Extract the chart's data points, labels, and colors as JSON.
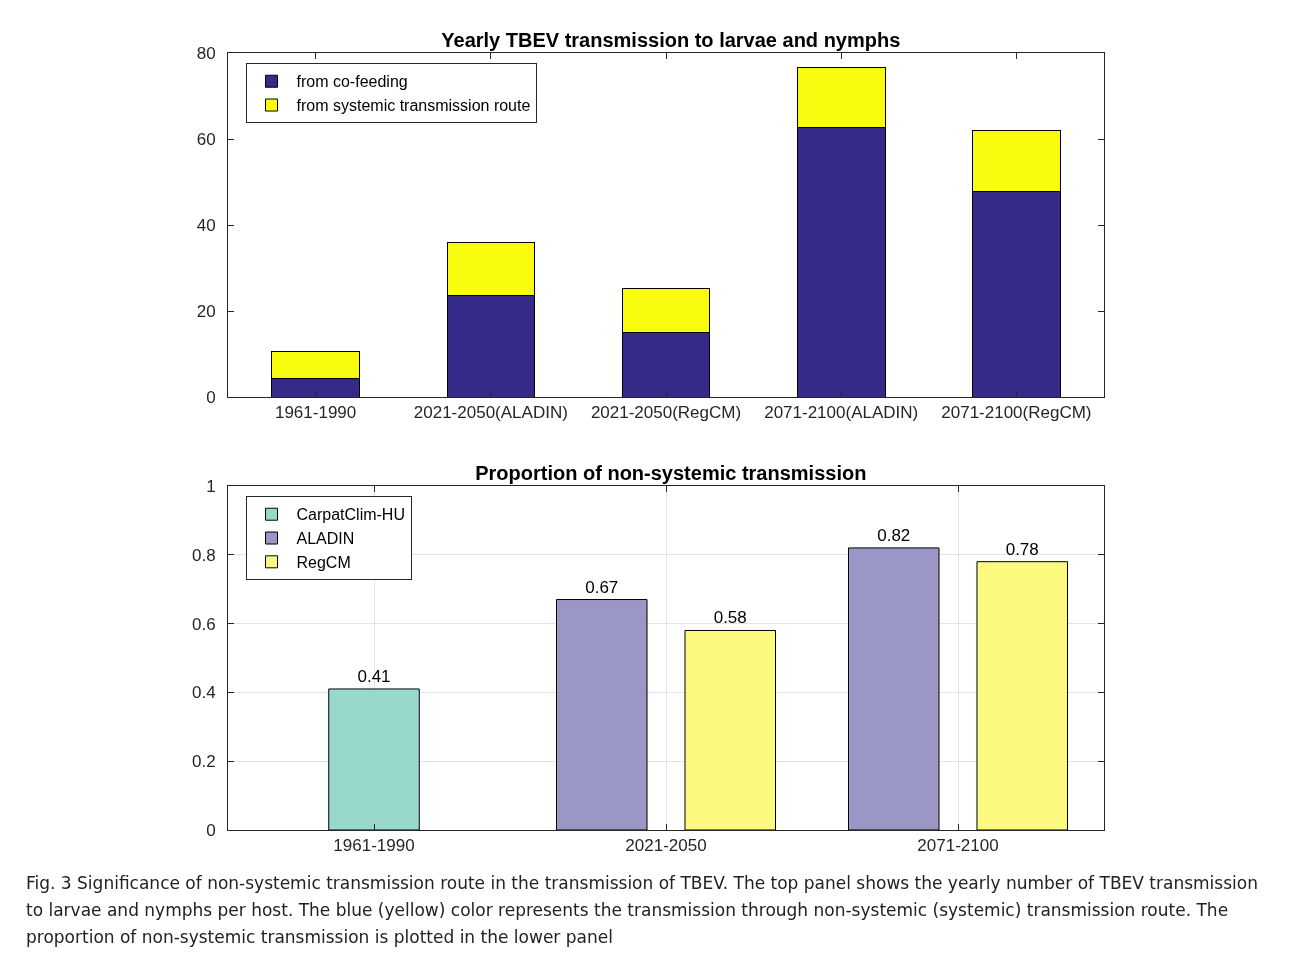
{
  "chart_data": [
    {
      "type": "bar",
      "title": "Yearly TBEV transmission to larvae and nymphs",
      "stacked": true,
      "categories": [
        "1961-1990",
        "2021-2050(ALADIN)",
        "2021-2050(RegCM)",
        "2071-2100(ALADIN)",
        "2071-2100(RegCM)"
      ],
      "series": [
        {
          "name": "from co-feeding",
          "color": "#352a87",
          "values": [
            4.4,
            23.7,
            14.9,
            62.6,
            47.9
          ]
        },
        {
          "name": "from systemic transmission route",
          "color": "#f9fb0e",
          "values": [
            6.1,
            12.3,
            10.4,
            14.1,
            14.0
          ]
        }
      ],
      "ylim": [
        0,
        80
      ],
      "yticks": [
        0,
        20,
        40,
        60,
        80
      ],
      "grid": false,
      "legend": "top left"
    },
    {
      "type": "bar",
      "title": "Proportion of non-systemic transmission",
      "categories": [
        "1961-1990",
        "2021-2050",
        "2071-2100"
      ],
      "series": [
        {
          "name": "CarpatClim-HU",
          "color": "#99d9cc",
          "values": [
            0.41,
            null,
            null
          ]
        },
        {
          "name": "ALADIN",
          "color": "#9a96c6",
          "values": [
            null,
            0.67,
            0.82
          ]
        },
        {
          "name": "RegCM",
          "color": "#fbfa7e",
          "values": [
            null,
            0.58,
            0.78
          ]
        }
      ],
      "ylim": [
        0,
        1
      ],
      "yticks": [
        0,
        0.2,
        0.4,
        0.6,
        0.8,
        1
      ],
      "grid": true,
      "legend": "top left",
      "data_labels": true,
      "annotations": [
        "Fig. 3 Significance of non-systemic transmission route in the transmission of TBEV. The top panel shows the yearly number of TBEV transmission to larvae and nymphs per host. The blue (yellow) color represents the transmission through non-systemic (systemic) transmission route. The proportion of non-systemic transmission is plotted in the lower panel"
      ]
    }
  ]
}
